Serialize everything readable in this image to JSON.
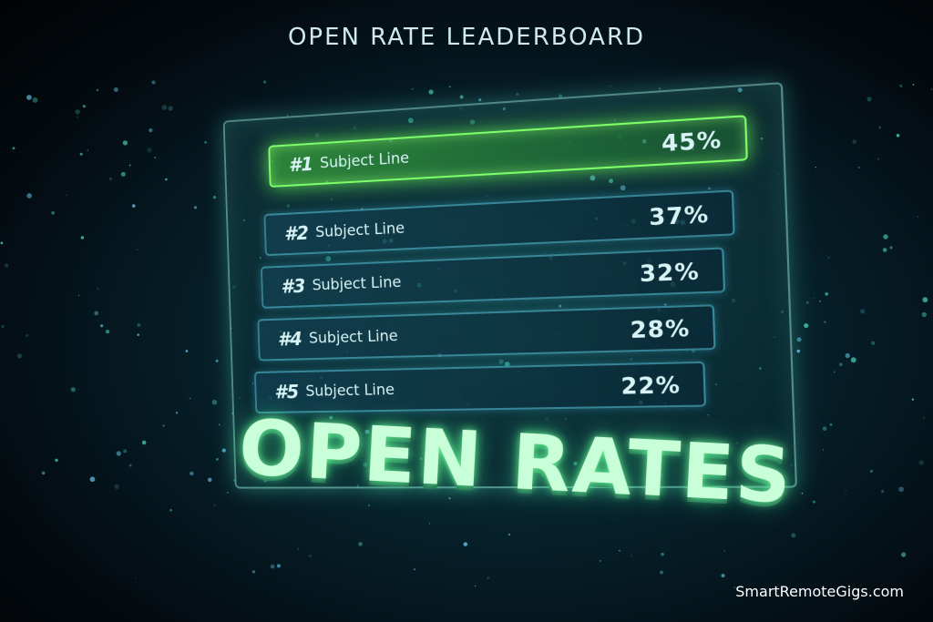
{
  "header": {
    "title": "OPEN RATE LEADERBOARD"
  },
  "table": {
    "rows": [
      {
        "rank": "#1",
        "label": "Subject Line",
        "value": "45%"
      },
      {
        "rank": "#2",
        "label": "Subject Line",
        "value": "37%"
      },
      {
        "rank": "#3",
        "label": "Subject Line",
        "value": "32%"
      },
      {
        "rank": "#4",
        "label": "Subject Line",
        "value": "28%"
      },
      {
        "rank": "#5",
        "label": "Subject Line",
        "value": "22%"
      }
    ]
  },
  "banner": "OPEN RATES",
  "watermark": "SmartRemoteGigs.com"
}
